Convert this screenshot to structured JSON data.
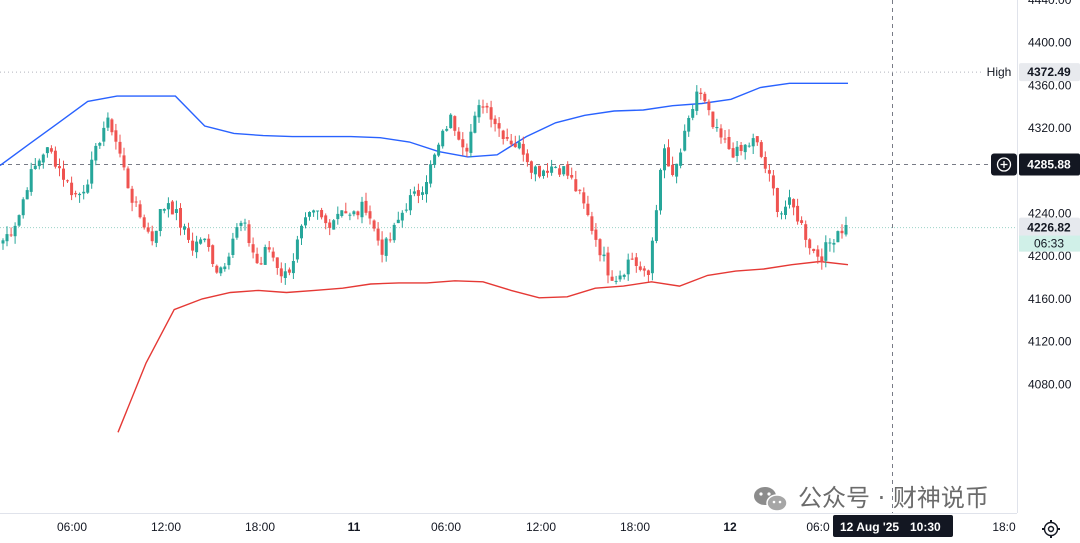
{
  "chart_data": {
    "type": "candlestick",
    "instrument_interval": "",
    "ylim": [
      4060,
      4440
    ],
    "y_ticks": [
      "4080.00",
      "4120.00",
      "4160.00",
      "4200.00",
      "4240.00",
      "4280.00",
      "4320.00",
      "4360.00",
      "4400.00",
      "4440.00"
    ],
    "x_ticks": [
      {
        "label": "06:00",
        "bold": false
      },
      {
        "label": "12:00",
        "bold": false
      },
      {
        "label": "18:00",
        "bold": false
      },
      {
        "label": "11",
        "bold": true
      },
      {
        "label": "06:00",
        "bold": false
      },
      {
        "label": "12:00",
        "bold": false
      },
      {
        "label": "18:00",
        "bold": false
      },
      {
        "label": "12",
        "bold": true
      },
      {
        "label": "06:0",
        "bold": false
      },
      {
        "label": "18:0",
        "bold": false
      }
    ],
    "session_closes": [
      4215,
      4225,
      4240,
      4270,
      4285,
      4300,
      4295,
      4280,
      4265,
      4255,
      4268,
      4290,
      4320,
      4325,
      4300,
      4270,
      4245,
      4232,
      4215,
      4240,
      4252,
      4238,
      4222,
      4208,
      4218,
      4205,
      4186,
      4198,
      4222,
      4231,
      4210,
      4188,
      4210,
      4195,
      4180,
      4195,
      4222,
      4235,
      4240,
      4230,
      4236,
      4247,
      4236,
      4242,
      4248,
      4222,
      4205,
      4218,
      4236,
      4252,
      4256,
      4270,
      4288,
      4308,
      4330,
      4318,
      4302,
      4325,
      4345,
      4335,
      4320,
      4312,
      4305,
      4300,
      4284,
      4280,
      4284,
      4285,
      4280,
      4268,
      4252,
      4232,
      4212,
      4190,
      4180,
      4187,
      4200,
      4188,
      4176,
      4245,
      4300,
      4270,
      4298,
      4325,
      4356,
      4340,
      4318,
      4308,
      4300,
      4295,
      4304,
      4308,
      4288,
      4266,
      4240,
      4250,
      4240,
      4222,
      4205,
      4200,
      4212,
      4225,
      4227
    ],
    "upper_band": [
      4285,
      4305,
      4325,
      4345,
      4350,
      4350,
      4350,
      4322,
      4315,
      4313,
      4312,
      4312,
      4312,
      4311,
      4307,
      4298,
      4293,
      4295,
      4312,
      4325,
      4332,
      4336,
      4337,
      4341,
      4343,
      4347,
      4358,
      4362,
      4362,
      4362
    ],
    "lower_band": [
      4035,
      4100,
      4150,
      4160,
      4166,
      4168,
      4166,
      4168,
      4170,
      4174,
      4175,
      4175,
      4177,
      4176,
      4168,
      4161,
      4162,
      4170,
      4172,
      4176,
      4172,
      4182,
      4186,
      4188,
      4192,
      4195,
      4192
    ],
    "high_value": 4372.49,
    "high_label": "High",
    "high_text": "4372.49",
    "crosshair_value": 4285.88,
    "crosshair_text": "4285.88",
    "last_price": 4226.82,
    "last_text": "4226.82",
    "countdown": "06:33",
    "time_pill": {
      "date": "12 Aug '25",
      "time": "10:30"
    },
    "grid": false,
    "legend": "none"
  },
  "watermark": {
    "text": "公众号 · 财神说币",
    "icon": "wechat-icon"
  },
  "colors": {
    "up": "#26a69a",
    "down": "#ef5350",
    "upper_band": "#2962ff",
    "lower_band": "#e53935",
    "axis_text": "#131722",
    "pill_dark": "#131722",
    "last_price_bg": "#e6e9ee",
    "countdown_bg": "#d0f0e8"
  },
  "settings_icon": "gear-icon",
  "crosshair_add_icon": "plus-circle-icon"
}
